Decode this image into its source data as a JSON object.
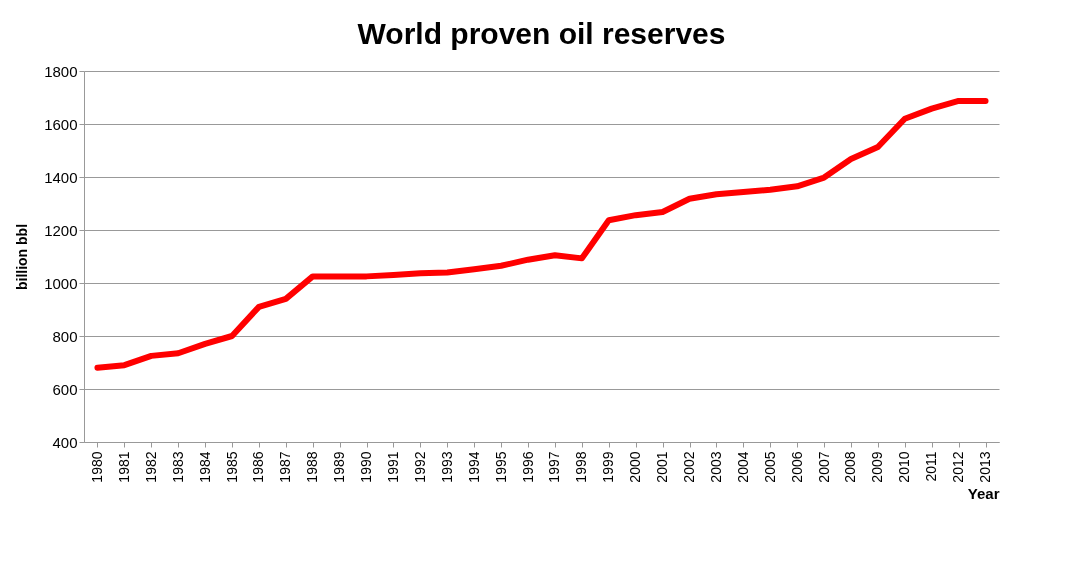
{
  "chart_data": {
    "type": "line",
    "title": "World proven oil reserves",
    "xlabel": "Year",
    "ylabel": "billion bbl",
    "categories": [
      "1980",
      "1981",
      "1982",
      "1983",
      "1984",
      "1985",
      "1986",
      "1987",
      "1988",
      "1989",
      "1990",
      "1991",
      "1992",
      "1993",
      "1994",
      "1995",
      "1996",
      "1997",
      "1998",
      "1999",
      "2000",
      "2001",
      "2002",
      "2003",
      "2004",
      "2005",
      "2006",
      "2007",
      "2008",
      "2009",
      "2010",
      "2011",
      "2012",
      "2013"
    ],
    "series": [
      {
        "color": "#ff0000",
        "values": [
          680,
          690,
          725,
          735,
          770,
          800,
          910,
          940,
          1025,
          1025,
          1025,
          1030,
          1037,
          1040,
          1052,
          1065,
          1088,
          1105,
          1093,
          1237,
          1256,
          1268,
          1318,
          1335,
          1343,
          1352,
          1365,
          1398,
          1468,
          1513,
          1620,
          1658,
          1687,
          1687
        ]
      }
    ],
    "ylim": [
      400,
      1800
    ],
    "yticks": [
      400,
      600,
      800,
      1000,
      1200,
      1400,
      1600,
      1800
    ],
    "grid": "y",
    "marker": "none",
    "line_style": "solid"
  }
}
